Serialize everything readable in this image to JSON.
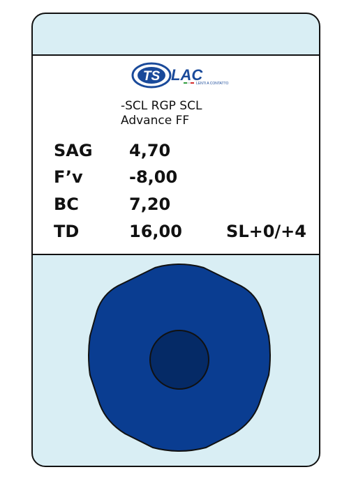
{
  "logo": {
    "text_ts": "TS",
    "text_lac": "LAC",
    "tagline": "LENTI A CONTATTO",
    "colors": {
      "brand_blue": "#1a4a9a",
      "flag_green": "#2e9e3e",
      "flag_red": "#d42b2b"
    }
  },
  "product": {
    "line1": "-SCL RGP SCL",
    "line2": "Advance FF"
  },
  "params": {
    "sag": {
      "label": "SAG",
      "value": "4,70"
    },
    "fv": {
      "label": "F’v",
      "value": "-8,00"
    },
    "bc": {
      "label": "BC",
      "value": "7,20"
    },
    "td": {
      "label": "TD",
      "value": "16,00"
    },
    "extra": "SL+0/+4"
  },
  "colors": {
    "card_background": "#d9eef4",
    "lens_blue": "#0a3d91",
    "lens_center": "#052a66",
    "outline": "#111111"
  }
}
